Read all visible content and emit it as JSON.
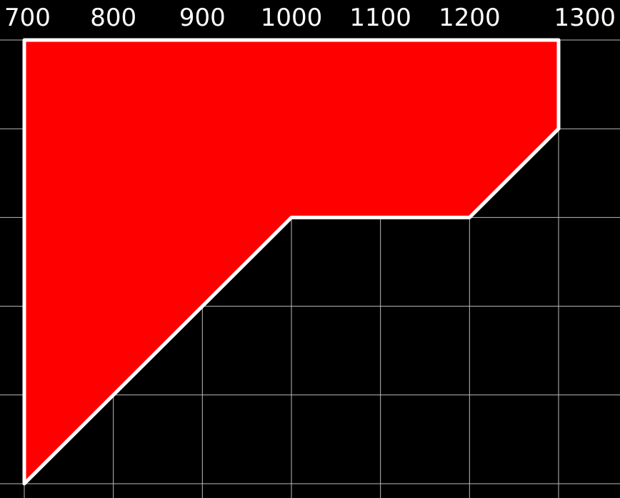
{
  "chart_data": {
    "type": "area",
    "title": "",
    "xlabel": "",
    "ylabel": "",
    "x_ticks": [
      "700",
      "800",
      "900",
      "1000",
      "1100",
      "1200",
      "1300"
    ],
    "xlim": [
      700,
      1300
    ],
    "ylim": [
      0,
      5
    ],
    "grid": true,
    "polygon": [
      {
        "x": 700,
        "y": 5
      },
      {
        "x": 1300,
        "y": 5
      },
      {
        "x": 1300,
        "y": 4
      },
      {
        "x": 1200,
        "y": 3
      },
      {
        "x": 1000,
        "y": 3
      },
      {
        "x": 700,
        "y": 0
      }
    ],
    "colors": {
      "background": "#000000",
      "fill": "#ff0000",
      "outline": "#ffffff",
      "grid": "#bbbbbb",
      "text": "#ffffff"
    }
  }
}
